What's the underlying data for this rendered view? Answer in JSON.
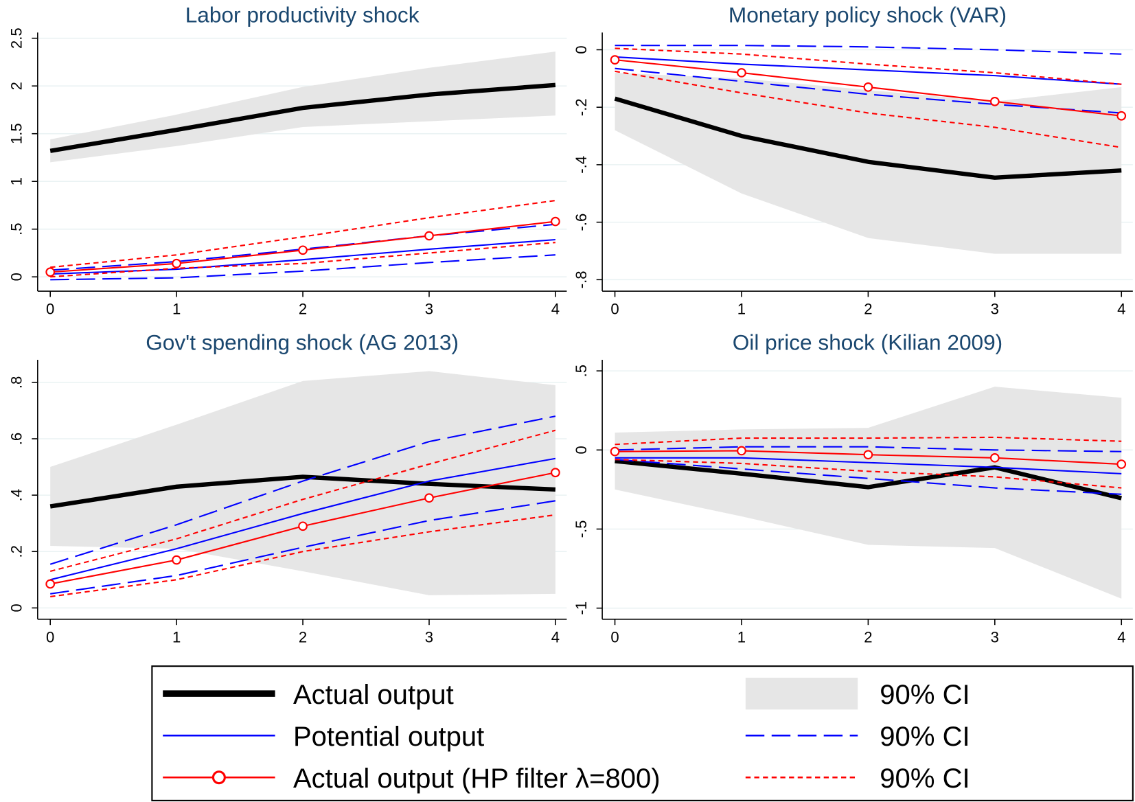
{
  "chart_data": [
    {
      "type": "line",
      "title": "Labor productivity shock",
      "x": [
        0,
        1,
        2,
        3,
        4
      ],
      "xlim": [
        -0.1,
        4.09
      ],
      "xticks": [
        0,
        1,
        2,
        3,
        4
      ],
      "ylim": [
        -0.15,
        2.56
      ],
      "yticks": [
        0,
        {
          "value": 0.5,
          "label": ".5"
        },
        1,
        1.5,
        2,
        2.5
      ],
      "grid": true,
      "series": [
        {
          "name": "Actual output",
          "color": "#000000",
          "style": "thick",
          "values": [
            1.32,
            1.54,
            1.77,
            1.91,
            2.01
          ]
        },
        {
          "name": "90% CI",
          "color": "#e6e6e6",
          "style": "band",
          "lower": [
            1.2,
            1.37,
            1.57,
            1.63,
            1.69
          ],
          "upper": [
            1.44,
            1.7,
            1.99,
            2.19,
            2.36
          ]
        },
        {
          "name": "Potential output",
          "color": "#0000ff",
          "style": "solid",
          "values": [
            0.03,
            0.08,
            0.18,
            0.29,
            0.39
          ]
        },
        {
          "name": "90% CI",
          "color": "#0000ff",
          "style": "longdash",
          "lower": [
            -0.03,
            -0.01,
            0.06,
            0.15,
            0.23
          ],
          "upper": [
            0.07,
            0.16,
            0.29,
            0.43,
            0.55
          ]
        },
        {
          "name": "Actual output (HP filter λ=800)",
          "color": "#ff0000",
          "style": "marker",
          "values": [
            0.05,
            0.14,
            0.28,
            0.43,
            0.58
          ]
        },
        {
          "name": "90% CI",
          "color": "#ff0000",
          "style": "shortdash",
          "lower": [
            0.0,
            0.09,
            0.14,
            0.25,
            0.36
          ],
          "upper": [
            0.1,
            0.23,
            0.42,
            0.62,
            0.8
          ]
        }
      ]
    },
    {
      "type": "line",
      "title": "Monetary policy shock (VAR)",
      "x": [
        0,
        1,
        2,
        3,
        4
      ],
      "xlim": [
        -0.1,
        4.09
      ],
      "xticks": [
        0,
        1,
        2,
        3,
        4
      ],
      "ylim": [
        -0.84,
        0.06
      ],
      "yticks": [
        {
          "value": -0.8,
          "label": "-.8"
        },
        {
          "value": -0.6,
          "label": "-.6"
        },
        {
          "value": -0.4,
          "label": "-.4"
        },
        {
          "value": -0.2,
          "label": "-.2"
        },
        0
      ],
      "grid": true,
      "series": [
        {
          "values": [
            -0.17,
            -0.3,
            -0.39,
            -0.445,
            -0.42
          ]
        },
        {
          "lower": [
            -0.28,
            -0.5,
            -0.655,
            -0.71,
            -0.71
          ],
          "upper": [
            -0.08,
            -0.1,
            -0.14,
            -0.18,
            -0.13
          ]
        },
        {
          "values": [
            -0.025,
            -0.05,
            -0.07,
            -0.09,
            -0.12
          ]
        },
        {
          "lower": [
            -0.065,
            -0.11,
            -0.155,
            -0.19,
            -0.22
          ],
          "upper": [
            0.015,
            0.015,
            0.01,
            0.0,
            -0.015
          ]
        },
        {
          "values": [
            -0.035,
            -0.08,
            -0.13,
            -0.18,
            -0.23
          ]
        },
        {
          "lower": [
            -0.075,
            -0.15,
            -0.22,
            -0.27,
            -0.34
          ],
          "upper": [
            0.005,
            -0.015,
            -0.05,
            -0.08,
            -0.12
          ]
        }
      ]
    },
    {
      "type": "line",
      "title": "Gov't spending shock (AG 2013)",
      "x": [
        0,
        1,
        2,
        3,
        4
      ],
      "xlim": [
        -0.1,
        4.09
      ],
      "xticks": [
        0,
        1,
        2,
        3,
        4
      ],
      "ylim": [
        -0.04,
        0.88
      ],
      "yticks": [
        0,
        {
          "value": 0.2,
          "label": ".2"
        },
        {
          "value": 0.4,
          "label": ".4"
        },
        {
          "value": 0.6,
          "label": ".6"
        },
        {
          "value": 0.8,
          "label": ".8"
        }
      ],
      "grid": true,
      "series": [
        {
          "values": [
            0.36,
            0.43,
            0.465,
            0.44,
            0.42
          ]
        },
        {
          "lower": [
            0.22,
            0.21,
            0.13,
            0.045,
            0.05
          ],
          "upper": [
            0.5,
            0.65,
            0.805,
            0.84,
            0.79
          ]
        },
        {
          "values": [
            0.1,
            0.21,
            0.335,
            0.45,
            0.53
          ]
        },
        {
          "lower": [
            0.05,
            0.115,
            0.215,
            0.31,
            0.38
          ],
          "upper": [
            0.155,
            0.295,
            0.45,
            0.59,
            0.68
          ]
        },
        {
          "values": [
            0.085,
            0.17,
            0.29,
            0.39,
            0.48
          ]
        },
        {
          "lower": [
            0.04,
            0.1,
            0.2,
            0.27,
            0.33
          ],
          "upper": [
            0.13,
            0.245,
            0.385,
            0.51,
            0.63
          ]
        }
      ]
    },
    {
      "type": "line",
      "title": "Oil price shock (Kilian 2009)",
      "x": [
        0,
        1,
        2,
        3,
        4
      ],
      "xlim": [
        -0.1,
        4.09
      ],
      "xticks": [
        0,
        1,
        2,
        3,
        4
      ],
      "ylim": [
        -1.07,
        0.57
      ],
      "yticks": [
        -1,
        {
          "value": -0.5,
          "label": "-.5"
        },
        0,
        {
          "value": 0.5,
          "label": ".5"
        }
      ],
      "grid": true,
      "series": [
        {
          "values": [
            -0.07,
            -0.15,
            -0.235,
            -0.11,
            -0.305
          ]
        },
        {
          "lower": [
            -0.25,
            -0.42,
            -0.6,
            -0.62,
            -0.94
          ],
          "upper": [
            0.11,
            0.13,
            0.14,
            0.4,
            0.33
          ]
        },
        {
          "values": [
            -0.05,
            -0.05,
            -0.08,
            -0.11,
            -0.15
          ]
        },
        {
          "lower": [
            -0.06,
            -0.12,
            -0.18,
            -0.24,
            -0.28
          ],
          "upper": [
            0.0,
            0.02,
            0.02,
            0.0,
            -0.01
          ]
        },
        {
          "values": [
            -0.01,
            -0.005,
            -0.03,
            -0.05,
            -0.09
          ]
        },
        {
          "lower": [
            -0.06,
            -0.085,
            -0.135,
            -0.17,
            -0.24
          ],
          "upper": [
            0.035,
            0.075,
            0.075,
            0.08,
            0.055
          ]
        }
      ]
    }
  ]
}
